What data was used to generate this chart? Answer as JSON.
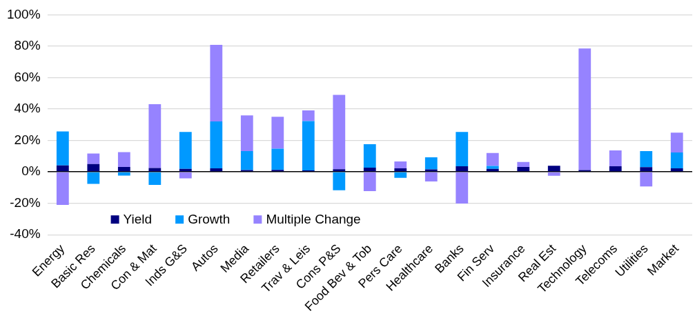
{
  "chart_data": {
    "type": "bar",
    "stacked": true,
    "categories": [
      "Energy",
      "Basic Res",
      "Chemicals",
      "Con & Mat",
      "Inds G&S",
      "Autos",
      "Media",
      "Retailers",
      "Trav & Leis",
      "Cons P&S",
      "Food Bev & Tob",
      "Pers Care",
      "Healthcare",
      "Banks",
      "Fin Serv",
      "Insurance",
      "Real Est",
      "Technology",
      "Telecoms",
      "Utilities",
      "Market"
    ],
    "series": [
      {
        "name": "Yield",
        "color": "#000080",
        "values": [
          4.1,
          5.0,
          3.1,
          2.4,
          1.9,
          2.2,
          1.1,
          1.3,
          0.9,
          1.7,
          2.7,
          2.2,
          1.6,
          3.6,
          1.9,
          3.1,
          3.9,
          1.1,
          3.6,
          3.0,
          2.2
        ]
      },
      {
        "name": "Growth",
        "color": "#0099ff",
        "values": [
          21.6,
          -7.6,
          -2.4,
          -8.3,
          23.5,
          29.9,
          12.1,
          13.5,
          31.4,
          -11.7,
          14.9,
          -3.8,
          7.7,
          21.8,
          1.9,
          0,
          0,
          null,
          0,
          10.2,
          10.1
        ]
      },
      {
        "name": "Multiple Change",
        "color": "#9683ff",
        "values": [
          -21.0,
          6.7,
          9.5,
          40.7,
          -4.1,
          48.8,
          22.7,
          20.3,
          6.8,
          47.3,
          -12.3,
          4.4,
          -6.1,
          -20.2,
          8.2,
          3.2,
          -2.5,
          77.5,
          10.1,
          -9.3,
          12.7
        ]
      }
    ],
    "ylim": [
      -40,
      100
    ],
    "yticks": [
      {
        "value": -40,
        "label": "-40%"
      },
      {
        "value": -20,
        "label": "-20%"
      },
      {
        "value": 0,
        "label": "0%"
      },
      {
        "value": 20,
        "label": "20%"
      },
      {
        "value": 40,
        "label": "40%"
      },
      {
        "value": 60,
        "label": "60%"
      },
      {
        "value": 80,
        "label": "80%"
      },
      {
        "value": 100,
        "label": "100%"
      }
    ],
    "grid": "y",
    "legend": "bottom left"
  }
}
